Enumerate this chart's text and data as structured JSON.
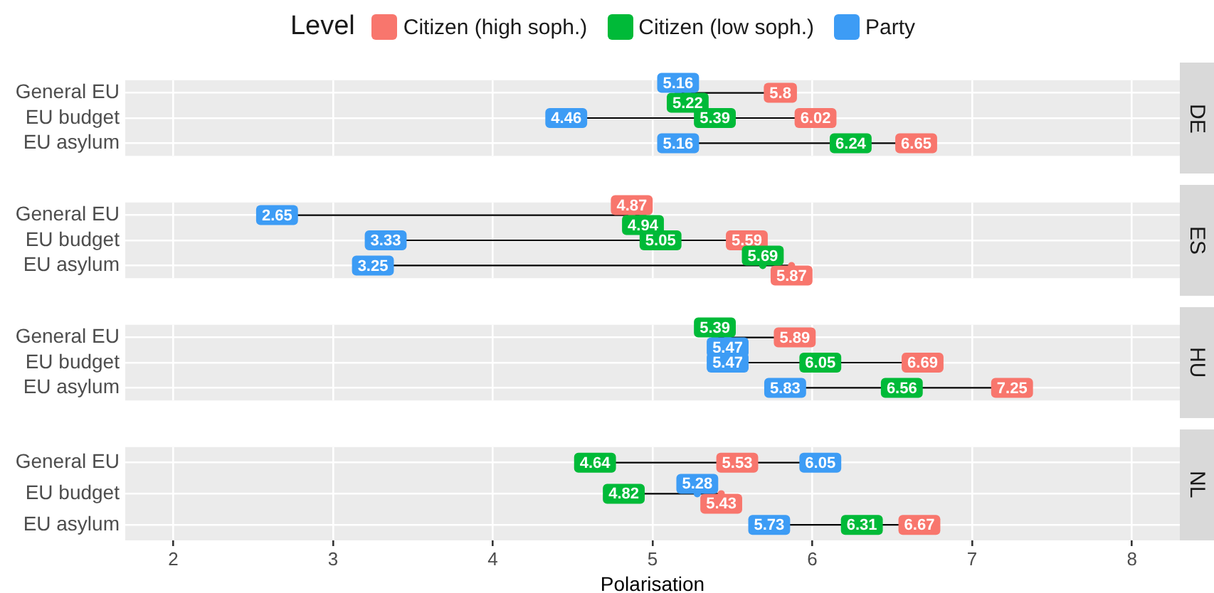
{
  "chart_data": [
    {
      "type": "scatter",
      "orientation": "horizontal",
      "title": "DE",
      "legend_title": "Level",
      "legend": "top",
      "categories": [
        "General EU",
        "EU budget",
        "EU asylum"
      ],
      "xlim": [
        1.7,
        8.3
      ],
      "xticks": [
        2,
        3,
        4,
        5,
        6,
        7,
        8
      ],
      "grid": true,
      "data_labels": true,
      "tick_labels": "y",
      "series": [
        {
          "name": "Citizen (high soph.)",
          "color": "#f8766d",
          "values": [
            5.8,
            6.02,
            6.65
          ]
        },
        {
          "name": "Citizen (low soph.)",
          "color": "#00ba38",
          "values": [
            5.22,
            5.39,
            6.24
          ]
        },
        {
          "name": "Party",
          "color": "#3d9cf5",
          "values": [
            5.16,
            4.46,
            5.16
          ]
        }
      ]
    },
    {
      "type": "scatter",
      "orientation": "horizontal",
      "title": "ES",
      "categories": [
        "General EU",
        "EU budget",
        "EU asylum"
      ],
      "xlim": [
        1.7,
        8.3
      ],
      "xticks": [
        2,
        3,
        4,
        5,
        6,
        7,
        8
      ],
      "grid": true,
      "data_labels": true,
      "tick_labels": "y",
      "series": [
        {
          "color": "#f8766d",
          "values": [
            4.87,
            5.59,
            5.87
          ]
        },
        {
          "color": "#00ba38",
          "values": [
            4.94,
            5.05,
            5.69
          ]
        },
        {
          "color": "#3d9cf5",
          "values": [
            2.65,
            3.33,
            3.25
          ]
        }
      ]
    },
    {
      "type": "scatter",
      "orientation": "horizontal",
      "title": "HU",
      "categories": [
        "General EU",
        "EU budget",
        "EU asylum"
      ],
      "xlim": [
        1.7,
        8.3
      ],
      "xticks": [
        2,
        3,
        4,
        5,
        6,
        7,
        8
      ],
      "grid": true,
      "data_labels": true,
      "tick_labels": "y",
      "series": [
        {
          "color": "#f8766d",
          "values": [
            5.89,
            6.69,
            7.25
          ]
        },
        {
          "color": "#00ba38",
          "values": [
            5.39,
            6.05,
            6.56
          ]
        },
        {
          "color": "#3d9cf5",
          "values": [
            5.47,
            5.47,
            5.83
          ]
        }
      ]
    },
    {
      "type": "scatter",
      "orientation": "horizontal",
      "title": "NL",
      "xlabel": "Polarisation",
      "categories": [
        "General EU",
        "EU budget",
        "EU asylum"
      ],
      "xlim": [
        1.7,
        8.3
      ],
      "xticks": [
        2,
        3,
        4,
        5,
        6,
        7,
        8
      ],
      "grid": true,
      "data_labels": true,
      "series": [
        {
          "color": "#f8766d",
          "values": [
            5.53,
            5.43,
            6.67
          ]
        },
        {
          "color": "#00ba38",
          "values": [
            4.64,
            4.82,
            6.31
          ]
        },
        {
          "color": "#3d9cf5",
          "values": [
            6.05,
            5.28,
            5.73
          ]
        }
      ]
    }
  ]
}
